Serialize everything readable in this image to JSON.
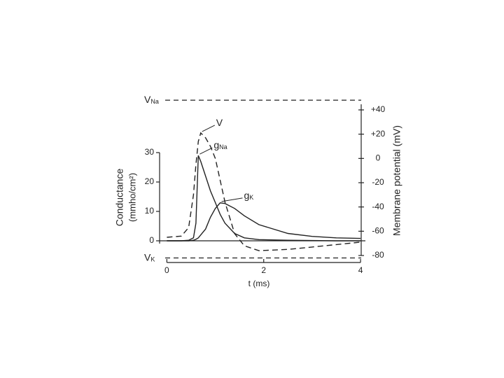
{
  "chart_data": {
    "type": "line",
    "x_label": "t (ms)",
    "y_label": [
      "Conductance",
      "(mmho/cm²)"
    ],
    "y2_label": "Membrane potential (mV)",
    "x": [
      0,
      0.3,
      0.45,
      0.55,
      0.6,
      0.65,
      0.7,
      0.8,
      0.9,
      1.0,
      1.1,
      1.2,
      1.4,
      1.6,
      1.9,
      2.5,
      3.0,
      3.5,
      4.0
    ],
    "xlim": [
      -0.15,
      4.1
    ],
    "xticks": [
      0,
      2,
      4
    ],
    "ylim": [
      0,
      30
    ],
    "yticks": [
      0,
      10,
      20,
      30
    ],
    "y2lim": [
      -80,
      40
    ],
    "y2ticks": [
      {
        "value": 40,
        "label": "+40"
      },
      {
        "value": 20,
        "label": "+20"
      },
      0,
      -20,
      -40,
      -60,
      -80
    ],
    "series": [
      {
        "name": "V",
        "axis": "y2",
        "dash": true,
        "color": "#222222",
        "values": [
          -65,
          -64,
          -57,
          -30,
          -5,
          14,
          21,
          17,
          10,
          0,
          -18,
          -36,
          -62,
          -72,
          -76,
          -75,
          -73,
          -71,
          -69
        ]
      },
      {
        "name": "g",
        "subscript": "Na",
        "color": "#222222",
        "values": [
          0,
          0,
          0.2,
          1,
          6,
          29,
          27,
          22,
          17,
          13,
          9,
          6,
          2.5,
          1,
          0.4,
          0.2,
          0.1,
          0,
          0
        ]
      },
      {
        "name": "g",
        "subscript": "K",
        "color": "#222222",
        "values": [
          0,
          0,
          0,
          0.2,
          0.5,
          1,
          2,
          4,
          8,
          11,
          12.9,
          12.7,
          11,
          8.5,
          5.5,
          2.5,
          1.5,
          1,
          0.8
        ]
      }
    ],
    "reference_lines": [
      {
        "name": "V",
        "subscript": "Na",
        "value": 48,
        "axis": "y2"
      },
      {
        "name": "V",
        "subscript": "K",
        "value": -82,
        "axis": "y2"
      }
    ]
  }
}
